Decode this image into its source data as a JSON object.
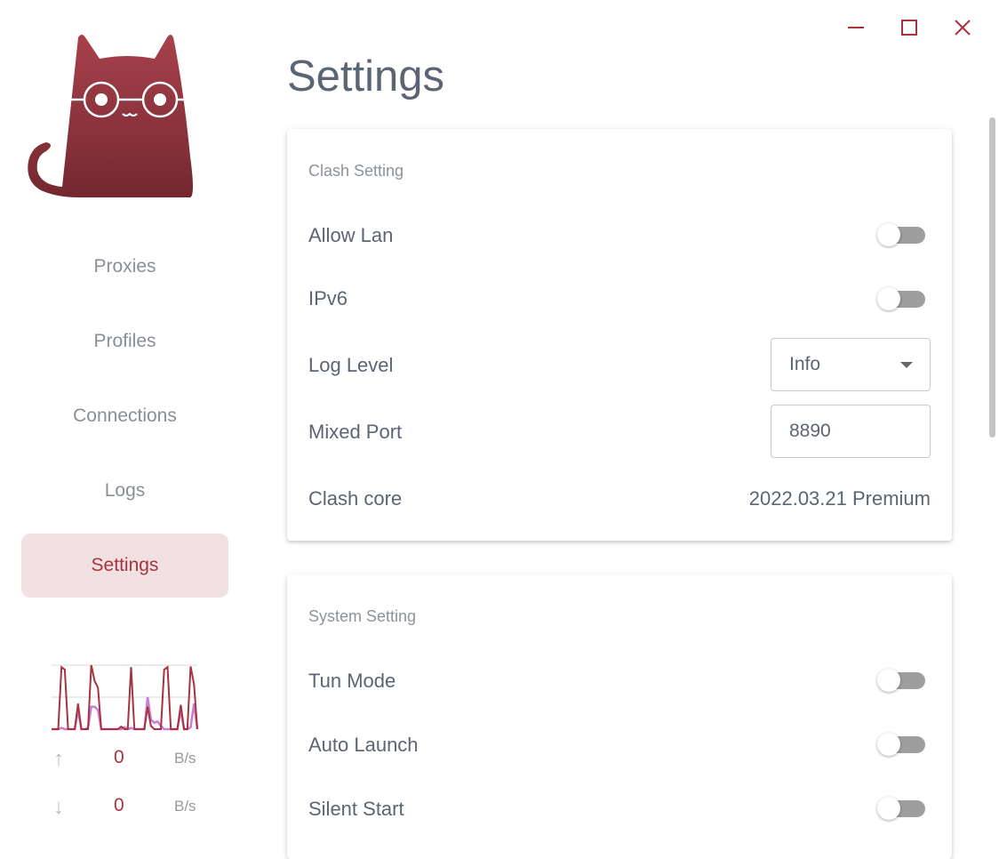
{
  "window": {
    "minimize_icon": "minimize-icon",
    "maximize_icon": "maximize-icon",
    "close_icon": "close-icon",
    "accent": "#a8323e"
  },
  "sidebar": {
    "items": [
      {
        "label": "Proxies"
      },
      {
        "label": "Profiles"
      },
      {
        "label": "Connections"
      },
      {
        "label": "Logs"
      },
      {
        "label": "Settings",
        "active": true
      }
    ],
    "traffic": {
      "upload": {
        "value": "0",
        "unit": "B/s"
      },
      "download": {
        "value": "0",
        "unit": "B/s"
      },
      "graph": {
        "upload_series": [
          0,
          0,
          0,
          97,
          93,
          0,
          0,
          0,
          40,
          0,
          0,
          0,
          100,
          75,
          65,
          0,
          0,
          0,
          0,
          0,
          0,
          4,
          0,
          0,
          97,
          0,
          0,
          0,
          0,
          35,
          5,
          0,
          0,
          0,
          93,
          97,
          0,
          0,
          0,
          38,
          0,
          0,
          98,
          70,
          0
        ],
        "download_series": [
          0,
          0,
          0,
          2,
          0,
          0,
          0,
          0,
          30,
          0,
          0,
          2,
          35,
          35,
          30,
          0,
          0,
          0,
          0,
          0,
          0,
          0,
          3,
          0,
          2,
          0,
          0,
          0,
          0,
          50,
          15,
          10,
          12,
          5,
          0,
          0,
          0,
          0,
          0,
          30,
          0,
          0,
          3,
          40,
          0
        ],
        "upload_color": "#a8323e",
        "download_color": "#c77dd6"
      }
    }
  },
  "main": {
    "title": "Settings",
    "clash": {
      "title": "Clash Setting",
      "allow_lan": {
        "label": "Allow Lan",
        "on": false
      },
      "ipv6": {
        "label": "IPv6",
        "on": false
      },
      "log_level": {
        "label": "Log Level",
        "value": "Info"
      },
      "mixed_port": {
        "label": "Mixed Port",
        "value": "8890"
      },
      "core": {
        "label": "Clash core",
        "value": "2022.03.21 Premium"
      }
    },
    "system": {
      "title": "System Setting",
      "tun_mode": {
        "label": "Tun Mode",
        "on": false
      },
      "auto_launch": {
        "label": "Auto Launch",
        "on": false
      },
      "silent_start": {
        "label": "Silent Start",
        "on": false
      }
    }
  }
}
